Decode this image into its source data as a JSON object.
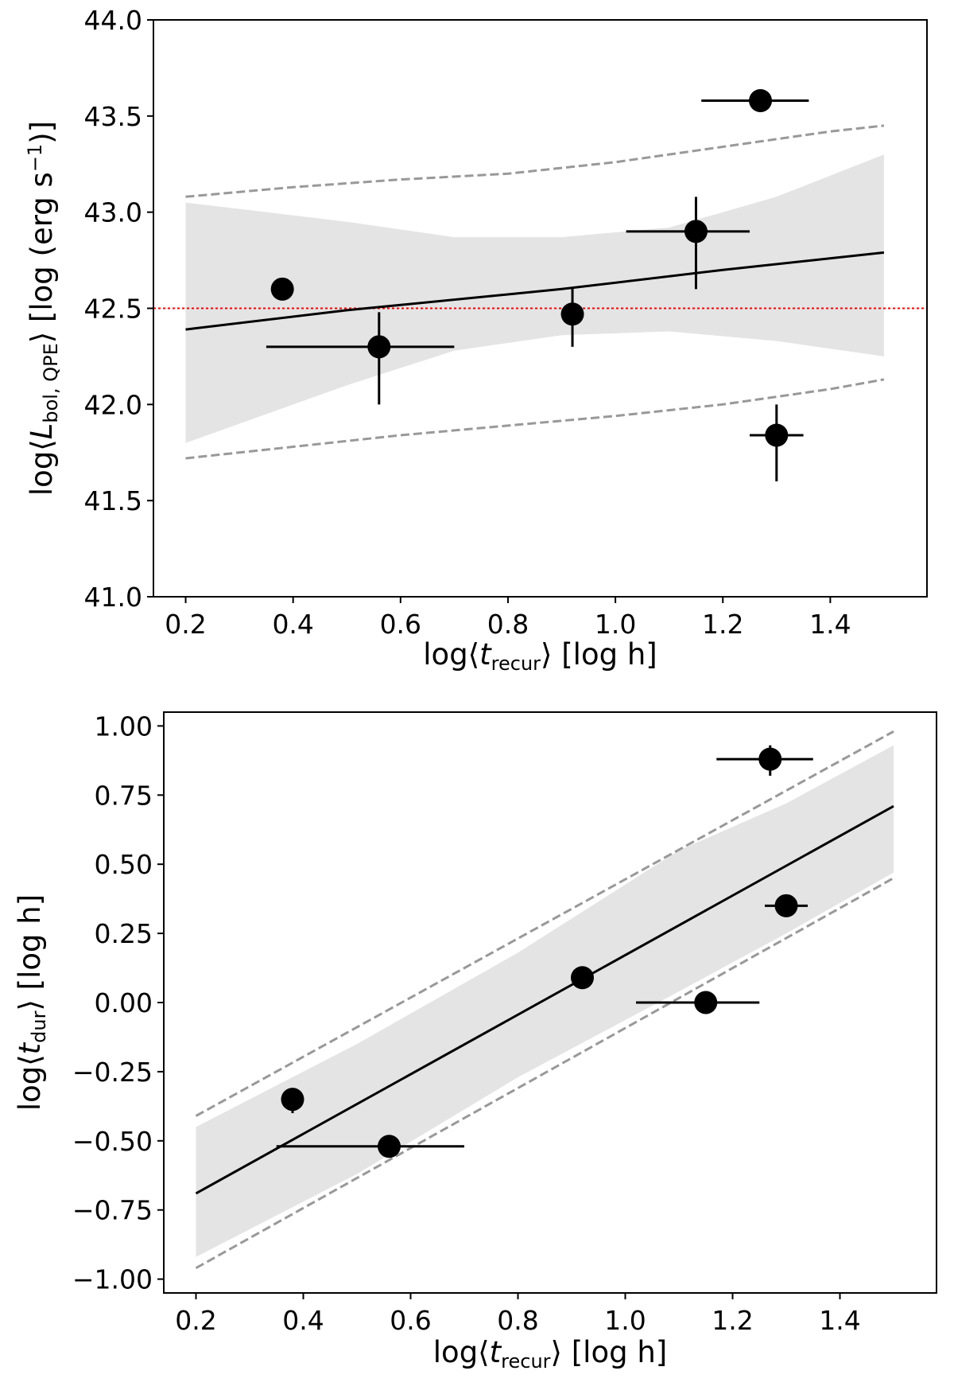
{
  "chart_data": [
    {
      "type": "scatter",
      "id": "top",
      "xlabel": "log⟨t_recur⟩ [log h]",
      "ylabel": "log⟨L_bol,QPE⟩ [log (erg s⁻¹)]",
      "xlim": [
        0.14,
        1.58
      ],
      "ylim": [
        41.0,
        44.0
      ],
      "xticks": [
        0.2,
        0.4,
        0.6,
        0.8,
        1.0,
        1.2,
        1.4
      ],
      "xtick_labels": [
        "0.2",
        "0.4",
        "0.6",
        "0.8",
        "1.0",
        "1.2",
        "1.4"
      ],
      "yticks": [
        41.0,
        41.5,
        42.0,
        42.5,
        43.0,
        43.5,
        44.0
      ],
      "ytick_labels": [
        "41.0",
        "41.5",
        "42.0",
        "42.5",
        "43.0",
        "43.5",
        "44.0"
      ],
      "points": [
        {
          "x": 0.38,
          "y": 42.6,
          "xerr": [
            0,
            0
          ],
          "yerr": [
            0,
            0
          ]
        },
        {
          "x": 0.56,
          "y": 42.3,
          "xerr": [
            0.21,
            0.14
          ],
          "yerr": [
            0.3,
            0.18
          ]
        },
        {
          "x": 0.92,
          "y": 42.47,
          "xerr": [
            0,
            0
          ],
          "yerr": [
            0.17,
            0.14
          ]
        },
        {
          "x": 1.15,
          "y": 42.9,
          "xerr": [
            0.13,
            0.1
          ],
          "yerr": [
            0.3,
            0.18
          ]
        },
        {
          "x": 1.27,
          "y": 43.58,
          "xerr": [
            0.11,
            0.09
          ],
          "yerr": [
            0,
            0
          ]
        },
        {
          "x": 1.3,
          "y": 41.84,
          "xerr": [
            0.05,
            0.05
          ],
          "yerr": [
            0.24,
            0.16
          ]
        }
      ],
      "fit_line": {
        "x": [
          0.2,
          0.5,
          0.9,
          1.2,
          1.5
        ],
        "y": [
          42.39,
          42.49,
          42.6,
          42.7,
          42.79
        ]
      },
      "shaded_band": {
        "x": [
          0.2,
          0.5,
          0.7,
          0.9,
          1.1,
          1.3,
          1.5
        ],
        "upper": [
          43.05,
          42.95,
          42.87,
          42.87,
          42.92,
          43.08,
          43.3
        ],
        "lower": [
          41.8,
          42.1,
          42.28,
          42.36,
          42.38,
          42.33,
          42.25
        ]
      },
      "dashed_upper": {
        "x": [
          0.2,
          0.4,
          0.6,
          0.8,
          1.0,
          1.2,
          1.4,
          1.5
        ],
        "y": [
          43.08,
          43.13,
          43.17,
          43.2,
          43.26,
          43.34,
          43.42,
          43.45
        ]
      },
      "dashed_lower": {
        "x": [
          0.2,
          0.4,
          0.6,
          0.8,
          1.0,
          1.2,
          1.4,
          1.5
        ],
        "y": [
          41.72,
          41.78,
          41.84,
          41.89,
          41.94,
          42.0,
          42.08,
          42.13
        ]
      },
      "reference_line": {
        "y": 42.5,
        "color": "#ff0000",
        "style": "dotted"
      }
    },
    {
      "type": "scatter",
      "id": "bottom",
      "xlabel": "log⟨t_recur⟩ [log h]",
      "ylabel": "log⟨t_dur⟩ [log h]",
      "xlim": [
        0.14,
        1.58
      ],
      "ylim": [
        -1.05,
        1.05
      ],
      "xticks": [
        0.2,
        0.4,
        0.6,
        0.8,
        1.0,
        1.2,
        1.4
      ],
      "xtick_labels": [
        "0.2",
        "0.4",
        "0.6",
        "0.8",
        "1.0",
        "1.2",
        "1.4"
      ],
      "yticks": [
        -1.0,
        -0.75,
        -0.5,
        -0.25,
        0.0,
        0.25,
        0.5,
        0.75,
        1.0
      ],
      "ytick_labels": [
        "−1.00",
        "−0.75",
        "−0.50",
        "−0.25",
        "0.00",
        "0.25",
        "0.50",
        "0.75",
        "1.00"
      ],
      "points": [
        {
          "x": 0.38,
          "y": -0.35,
          "xerr": [
            0,
            0
          ],
          "yerr": [
            0.05,
            0.03
          ]
        },
        {
          "x": 0.56,
          "y": -0.52,
          "xerr": [
            0.21,
            0.14
          ],
          "yerr": [
            0,
            0
          ]
        },
        {
          "x": 0.92,
          "y": 0.09,
          "xerr": [
            0,
            0
          ],
          "yerr": [
            0,
            0
          ]
        },
        {
          "x": 1.15,
          "y": 0.0,
          "xerr": [
            0.13,
            0.1
          ],
          "yerr": [
            0,
            0
          ]
        },
        {
          "x": 1.27,
          "y": 0.88,
          "xerr": [
            0.1,
            0.08
          ],
          "yerr": [
            0.06,
            0.05
          ]
        },
        {
          "x": 1.3,
          "y": 0.35,
          "xerr": [
            0.04,
            0.04
          ],
          "yerr": [
            0,
            0
          ]
        }
      ],
      "fit_line": {
        "x": [
          0.2,
          1.5
        ],
        "y": [
          -0.69,
          0.71
        ]
      },
      "shaded_band": {
        "x": [
          0.2,
          0.5,
          0.8,
          1.1,
          1.3,
          1.5
        ],
        "upper": [
          -0.45,
          -0.15,
          0.18,
          0.55,
          0.72,
          0.93
        ],
        "lower": [
          -0.92,
          -0.62,
          -0.27,
          0.04,
          0.25,
          0.47
        ]
      },
      "dashed_upper": {
        "x": [
          0.2,
          1.5
        ],
        "y": [
          -0.41,
          0.98
        ]
      },
      "dashed_lower": {
        "x": [
          0.2,
          1.5
        ],
        "y": [
          -0.96,
          0.45
        ]
      }
    }
  ]
}
